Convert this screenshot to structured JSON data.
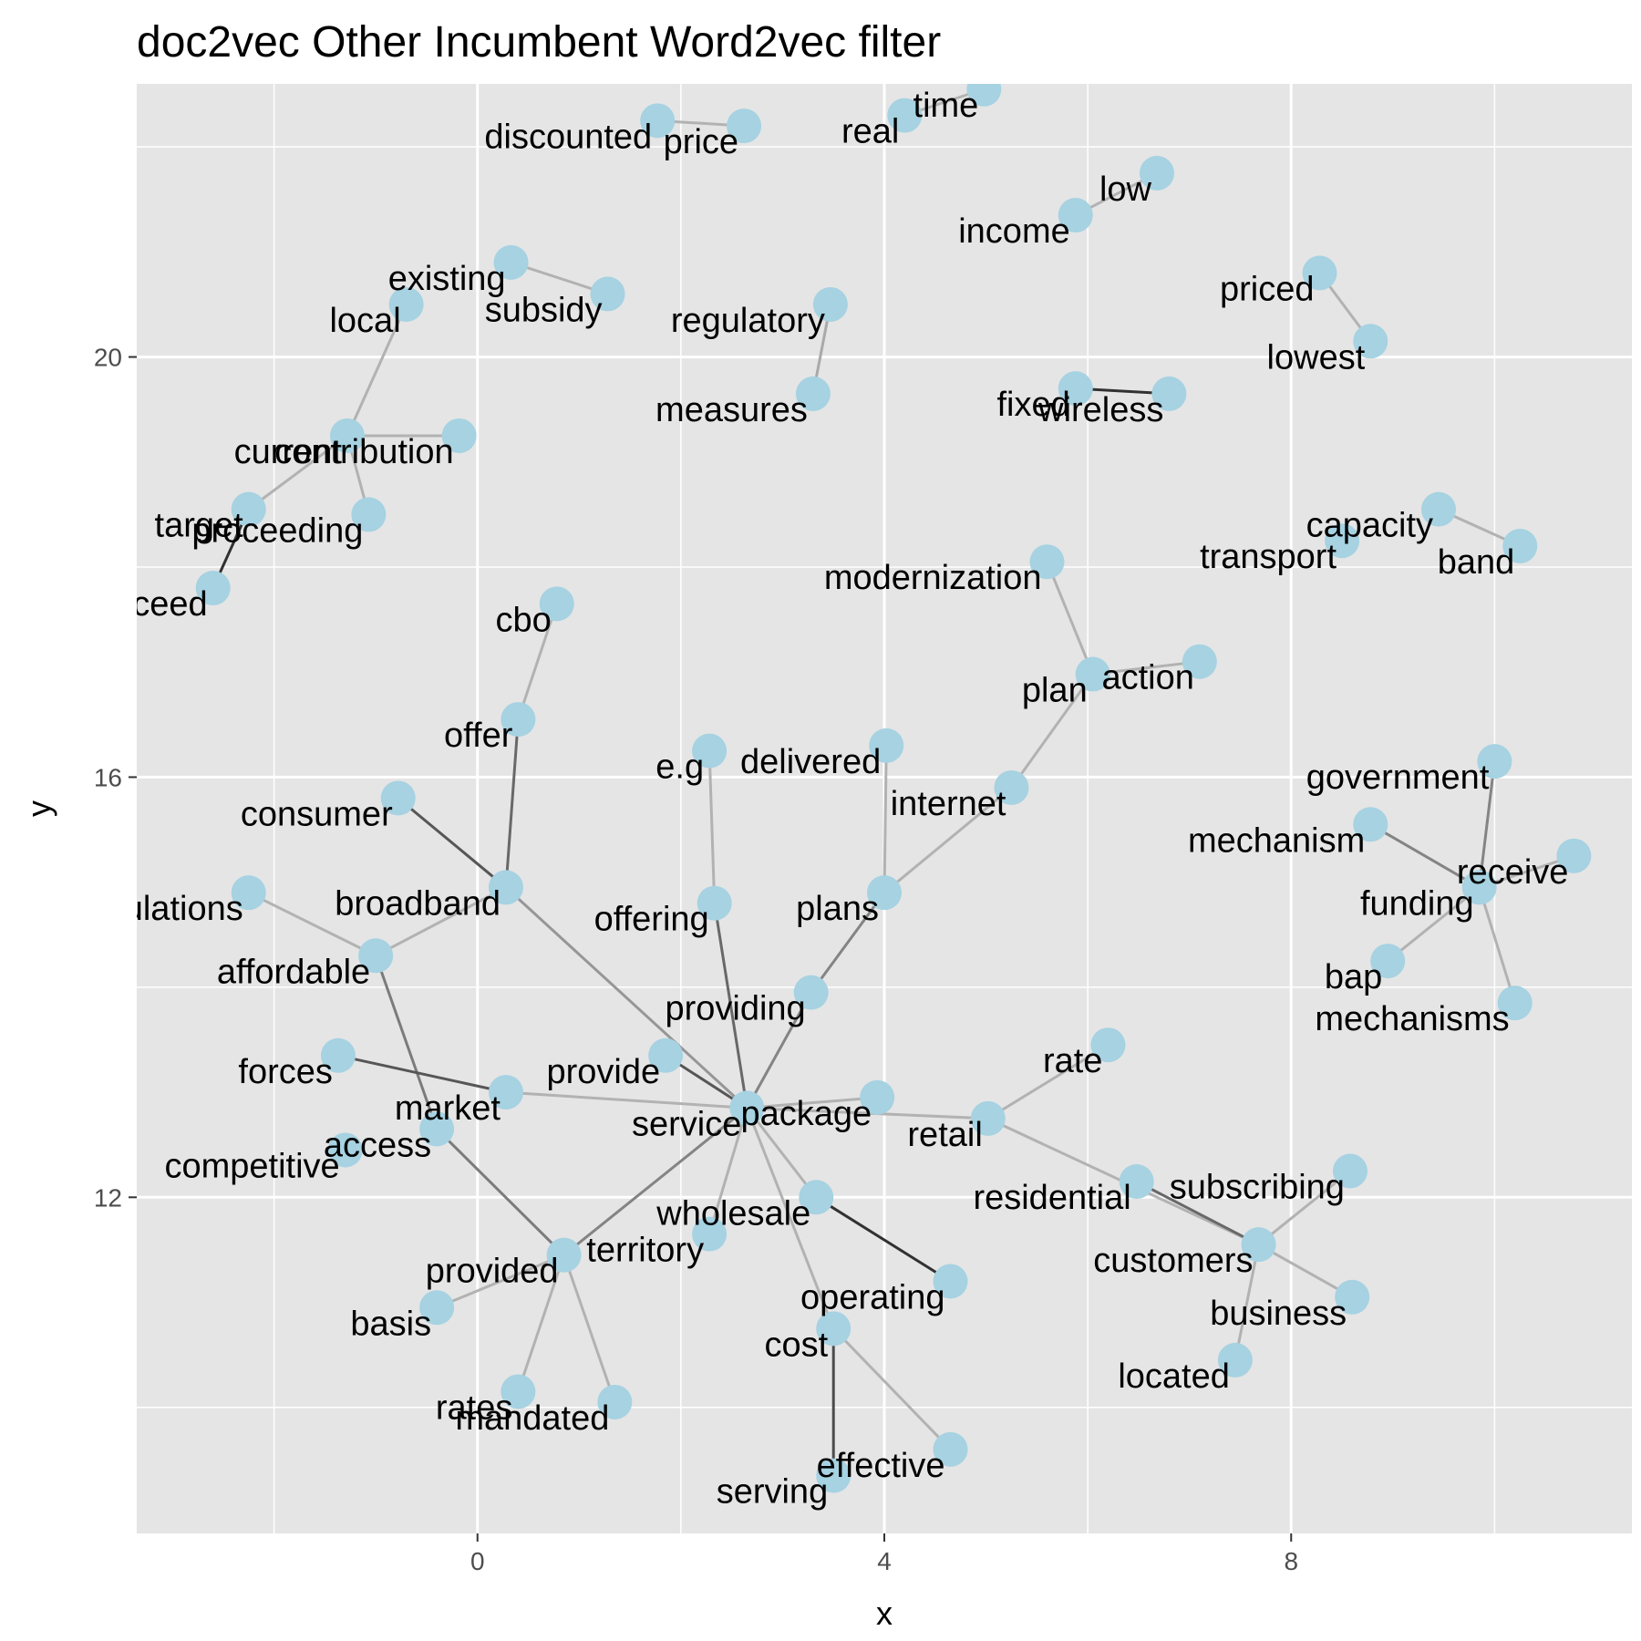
{
  "chart_data": {
    "type": "scatter",
    "title": "doc2vec Other Incumbent Word2vec filter",
    "xlabel": "x",
    "ylabel": "y",
    "xlim": [
      -3.35,
      11.35
    ],
    "ylim": [
      8.8,
      22.6
    ],
    "x_ticks": [
      0,
      4,
      8
    ],
    "y_ticks": [
      12,
      16,
      20
    ],
    "grid": true,
    "point_color": "#a6d2e2",
    "panel_background": "#e5e5e5",
    "gridline_color": "#ffffff",
    "points": [
      {
        "word": "discounted",
        "x": 1.77,
        "y": 22.25
      },
      {
        "word": "price",
        "x": 2.62,
        "y": 22.2
      },
      {
        "word": "real",
        "x": 4.2,
        "y": 22.3
      },
      {
        "word": "time",
        "x": 4.98,
        "y": 22.55
      },
      {
        "word": "low",
        "x": 6.68,
        "y": 21.75
      },
      {
        "word": "income",
        "x": 5.88,
        "y": 21.35
      },
      {
        "word": "existing",
        "x": 0.33,
        "y": 20.9
      },
      {
        "word": "subsidy",
        "x": 1.28,
        "y": 20.6
      },
      {
        "word": "local",
        "x": -0.7,
        "y": 20.5
      },
      {
        "word": "regulatory",
        "x": 3.47,
        "y": 20.5
      },
      {
        "word": "priced",
        "x": 8.28,
        "y": 20.8
      },
      {
        "word": "lowest",
        "x": 8.78,
        "y": 20.15
      },
      {
        "word": "fixed",
        "x": 5.88,
        "y": 19.7
      },
      {
        "word": "wireless",
        "x": 6.8,
        "y": 19.65
      },
      {
        "word": "measures",
        "x": 3.3,
        "y": 19.65
      },
      {
        "word": "current",
        "x": -1.28,
        "y": 19.25
      },
      {
        "word": "contribution",
        "x": -0.18,
        "y": 19.25
      },
      {
        "word": "target",
        "x": -2.25,
        "y": 18.55
      },
      {
        "word": "proceeding",
        "x": -1.07,
        "y": 18.5
      },
      {
        "word": "proceed",
        "x": -2.6,
        "y": 17.8
      },
      {
        "word": "capacity",
        "x": 9.45,
        "y": 18.55
      },
      {
        "word": "band",
        "x": 10.25,
        "y": 18.2
      },
      {
        "word": "transport",
        "x": 8.5,
        "y": 18.25
      },
      {
        "word": "modernization",
        "x": 5.6,
        "y": 18.05
      },
      {
        "word": "cbo",
        "x": 0.78,
        "y": 17.65
      },
      {
        "word": "action",
        "x": 7.1,
        "y": 17.1
      },
      {
        "word": "plan",
        "x": 6.05,
        "y": 16.98
      },
      {
        "word": "offer",
        "x": 0.4,
        "y": 16.55
      },
      {
        "word": "e.g",
        "x": 2.28,
        "y": 16.25
      },
      {
        "word": "delivered",
        "x": 4.02,
        "y": 16.3
      },
      {
        "word": "government",
        "x": 10.0,
        "y": 16.15
      },
      {
        "word": "internet",
        "x": 5.25,
        "y": 15.9
      },
      {
        "word": "consumer",
        "x": -0.78,
        "y": 15.8
      },
      {
        "word": "mechanism",
        "x": 8.78,
        "y": 15.55
      },
      {
        "word": "receive",
        "x": 10.78,
        "y": 15.25
      },
      {
        "word": "funding",
        "x": 9.85,
        "y": 14.95
      },
      {
        "word": "broadband",
        "x": 0.28,
        "y": 14.95
      },
      {
        "word": "regulations",
        "x": -2.25,
        "y": 14.9
      },
      {
        "word": "offering",
        "x": 2.33,
        "y": 14.8
      },
      {
        "word": "plans",
        "x": 4.0,
        "y": 14.9
      },
      {
        "word": "affordable",
        "x": -1.0,
        "y": 14.3
      },
      {
        "word": "bap",
        "x": 8.95,
        "y": 14.25
      },
      {
        "word": "providing",
        "x": 3.28,
        "y": 13.95
      },
      {
        "word": "mechanisms",
        "x": 10.2,
        "y": 13.85
      },
      {
        "word": "rate",
        "x": 6.2,
        "y": 13.45
      },
      {
        "word": "forces",
        "x": -1.37,
        "y": 13.35
      },
      {
        "word": "provide",
        "x": 1.85,
        "y": 13.35
      },
      {
        "word": "market",
        "x": 0.28,
        "y": 13.0
      },
      {
        "word": "package",
        "x": 3.93,
        "y": 12.95
      },
      {
        "word": "service",
        "x": 2.65,
        "y": 12.85
      },
      {
        "word": "retail",
        "x": 5.02,
        "y": 12.75
      },
      {
        "word": "access",
        "x": -0.4,
        "y": 12.65
      },
      {
        "word": "competitive",
        "x": -1.3,
        "y": 12.45
      },
      {
        "word": "subscribing",
        "x": 8.58,
        "y": 12.25
      },
      {
        "word": "residential",
        "x": 6.48,
        "y": 12.15
      },
      {
        "word": "territory",
        "x": 2.28,
        "y": 11.65
      },
      {
        "word": "provided",
        "x": 0.85,
        "y": 11.45
      },
      {
        "word": "customers",
        "x": 7.68,
        "y": 11.55
      },
      {
        "word": "business",
        "x": 8.6,
        "y": 11.05
      },
      {
        "word": "wholesale",
        "x": 3.33,
        "y": 12.0
      },
      {
        "word": "operating",
        "x": 4.65,
        "y": 11.2
      },
      {
        "word": "basis",
        "x": -0.4,
        "y": 10.95
      },
      {
        "word": "cost",
        "x": 3.5,
        "y": 10.75
      },
      {
        "word": "located",
        "x": 7.45,
        "y": 10.45
      },
      {
        "word": "rates",
        "x": 0.4,
        "y": 10.15
      },
      {
        "word": "mandated",
        "x": 1.35,
        "y": 10.05
      },
      {
        "word": "effective",
        "x": 4.65,
        "y": 9.6
      },
      {
        "word": "serving",
        "x": 3.5,
        "y": 9.35
      }
    ],
    "edges": [
      {
        "from": "discounted",
        "to": "price",
        "weight": 0.2
      },
      {
        "from": "real",
        "to": "time",
        "weight": 0.2
      },
      {
        "from": "income",
        "to": "low",
        "weight": 0.2
      },
      {
        "from": "existing",
        "to": "subsidy",
        "weight": 0.2
      },
      {
        "from": "priced",
        "to": "lowest",
        "weight": 0.2
      },
      {
        "from": "fixed",
        "to": "wireless",
        "weight": 0.9
      },
      {
        "from": "regulatory",
        "to": "measures",
        "weight": 0.25
      },
      {
        "from": "local",
        "to": "current",
        "weight": 0.2
      },
      {
        "from": "current",
        "to": "contribution",
        "weight": 0.2
      },
      {
        "from": "current",
        "to": "target",
        "weight": 0.2
      },
      {
        "from": "current",
        "to": "proceeding",
        "weight": 0.2
      },
      {
        "from": "target",
        "to": "proceed",
        "weight": 0.9
      },
      {
        "from": "capacity",
        "to": "band",
        "weight": 0.2
      },
      {
        "from": "modernization",
        "to": "plan",
        "weight": 0.2
      },
      {
        "from": "plan",
        "to": "action",
        "weight": 0.2
      },
      {
        "from": "plan",
        "to": "internet",
        "weight": 0.2
      },
      {
        "from": "cbo",
        "to": "offer",
        "weight": 0.2
      },
      {
        "from": "offer",
        "to": "broadband",
        "weight": 0.6
      },
      {
        "from": "consumer",
        "to": "broadband",
        "weight": 0.7
      },
      {
        "from": "broadband",
        "to": "affordable",
        "weight": 0.2
      },
      {
        "from": "broadband",
        "to": "service",
        "weight": 0.35
      },
      {
        "from": "regulations",
        "to": "affordable",
        "weight": 0.2
      },
      {
        "from": "affordable",
        "to": "access",
        "weight": 0.5
      },
      {
        "from": "e.g",
        "to": "offering",
        "weight": 0.2
      },
      {
        "from": "delivered",
        "to": "plans",
        "weight": 0.2
      },
      {
        "from": "internet",
        "to": "plans",
        "weight": 0.2
      },
      {
        "from": "plans",
        "to": "providing",
        "weight": 0.45
      },
      {
        "from": "providing",
        "to": "service",
        "weight": 0.45
      },
      {
        "from": "offering",
        "to": "service",
        "weight": 0.6
      },
      {
        "from": "provide",
        "to": "service",
        "weight": 0.7
      },
      {
        "from": "market",
        "to": "service",
        "weight": 0.2
      },
      {
        "from": "forces",
        "to": "market",
        "weight": 0.7
      },
      {
        "from": "service",
        "to": "package",
        "weight": 0.2
      },
      {
        "from": "service",
        "to": "retail",
        "weight": 0.2
      },
      {
        "from": "service",
        "to": "wholesale",
        "weight": 0.2
      },
      {
        "from": "service",
        "to": "territory",
        "weight": 0.2
      },
      {
        "from": "service",
        "to": "provided",
        "weight": 0.45
      },
      {
        "from": "service",
        "to": "cost",
        "weight": 0.2
      },
      {
        "from": "retail",
        "to": "rate",
        "weight": 0.2
      },
      {
        "from": "retail",
        "to": "customers",
        "weight": 0.2
      },
      {
        "from": "residential",
        "to": "customers",
        "weight": 0.6
      },
      {
        "from": "customers",
        "to": "subscribing",
        "weight": 0.2
      },
      {
        "from": "customers",
        "to": "business",
        "weight": 0.2
      },
      {
        "from": "customers",
        "to": "located",
        "weight": 0.2
      },
      {
        "from": "wholesale",
        "to": "operating",
        "weight": 0.9
      },
      {
        "from": "access",
        "to": "provided",
        "weight": 0.5
      },
      {
        "from": "provided",
        "to": "basis",
        "weight": 0.2
      },
      {
        "from": "provided",
        "to": "rates",
        "weight": 0.2
      },
      {
        "from": "provided",
        "to": "mandated",
        "weight": 0.2
      },
      {
        "from": "cost",
        "to": "serving",
        "weight": 0.75
      },
      {
        "from": "cost",
        "to": "effective",
        "weight": 0.2
      },
      {
        "from": "government",
        "to": "funding",
        "weight": 0.45
      },
      {
        "from": "mechanism",
        "to": "funding",
        "weight": 0.45
      },
      {
        "from": "funding",
        "to": "receive",
        "weight": 0.2
      },
      {
        "from": "funding",
        "to": "bap",
        "weight": 0.2
      },
      {
        "from": "funding",
        "to": "mechanisms",
        "weight": 0.2
      }
    ]
  }
}
